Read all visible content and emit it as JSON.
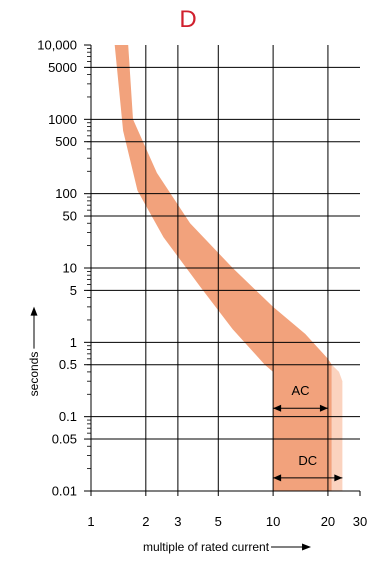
{
  "chart_data": {
    "type": "area",
    "title": "D",
    "title_color": "#d0202e",
    "xlabel": "multiple of rated current",
    "ylabel": "seconds",
    "xscale": "log",
    "yscale": "log",
    "xlim": [
      1,
      30
    ],
    "ylim": [
      0.01,
      10000
    ],
    "x_ticks": [
      {
        "value": 1,
        "label": "1"
      },
      {
        "value": 2,
        "label": "2"
      },
      {
        "value": 3,
        "label": "3"
      },
      {
        "value": 5,
        "label": "5"
      },
      {
        "value": 10,
        "label": "10"
      },
      {
        "value": 20,
        "label": "20"
      },
      {
        "value": 30,
        "label": "30"
      }
    ],
    "y_ticks": [
      {
        "value": 10000,
        "label": "10,000"
      },
      {
        "value": 5000,
        "label": "5000"
      },
      {
        "value": 1000,
        "label": "1000"
      },
      {
        "value": 500,
        "label": "500"
      },
      {
        "value": 100,
        "label": "100"
      },
      {
        "value": 50,
        "label": "50"
      },
      {
        "value": 10,
        "label": "10"
      },
      {
        "value": 5,
        "label": "5"
      },
      {
        "value": 1,
        "label": "1"
      },
      {
        "value": 0.5,
        "label": "0.5"
      },
      {
        "value": 0.1,
        "label": "0.1"
      },
      {
        "value": 0.05,
        "label": "0.05"
      },
      {
        "value": 0.01,
        "label": "0.01"
      }
    ],
    "grid": true,
    "band_color": "#f2a27c",
    "band_light_color": "#fbd3bf",
    "series": [
      {
        "lower": [
          [
            1.35,
            10000
          ],
          [
            1.5,
            700
          ],
          [
            1.8,
            110
          ],
          [
            2.5,
            26
          ],
          [
            4,
            5.5
          ],
          [
            6,
            1.5
          ],
          [
            9,
            0.5
          ],
          [
            10,
            0.4
          ],
          [
            10,
            0.01
          ]
        ],
        "upper": [
          [
            1.6,
            10000
          ],
          [
            1.7,
            1000
          ],
          [
            2.3,
            190
          ],
          [
            3.5,
            40
          ],
          [
            6,
            10
          ],
          [
            10,
            3
          ],
          [
            15,
            1.3
          ],
          [
            20,
            0.6
          ],
          [
            21,
            0.5
          ],
          [
            21,
            0.01
          ]
        ]
      },
      {
        "light": true,
        "boundary": [
          [
            21,
            0.5
          ],
          [
            23,
            0.4
          ],
          [
            24,
            0.3
          ],
          [
            24,
            0.01
          ]
        ]
      }
    ],
    "annotations": [
      {
        "label": "AC",
        "x_range": [
          10,
          20
        ],
        "y": 0.13
      },
      {
        "label": "DC",
        "x_range": [
          10,
          24
        ],
        "y": 0.015
      }
    ]
  }
}
